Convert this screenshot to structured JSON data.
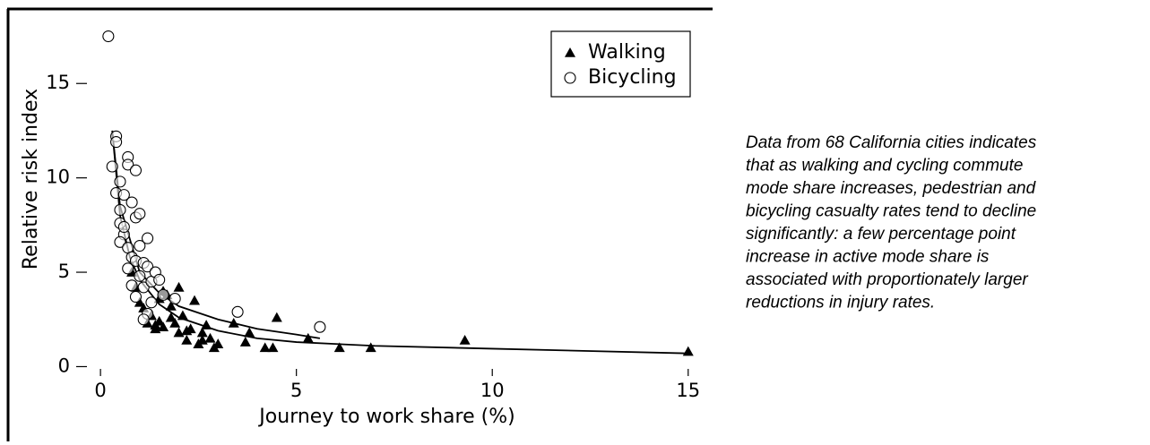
{
  "chart_data": {
    "type": "scatter",
    "xlabel": "Journey to work share (%)",
    "ylabel": "Relative risk index",
    "xlim": [
      -0.3,
      15.6
    ],
    "ylim": [
      -0.5,
      18
    ],
    "xticks": [
      0,
      5,
      10,
      15
    ],
    "yticks": [
      0,
      5,
      10,
      15
    ],
    "legend": "upper right",
    "series": [
      {
        "name": "Walking",
        "marker": "triangle",
        "color": "#000000",
        "x": [
          15,
          9.3,
          6.9,
          6.1,
          5.3,
          4.5,
          4.4,
          4.2,
          3.8,
          3.7,
          3.4,
          3.0,
          2.9,
          2.8,
          2.7,
          2.6,
          2.5,
          2.4,
          2.3,
          2.2,
          2.1,
          2.0,
          2.0,
          1.9,
          1.8,
          1.7,
          1.6,
          1.5,
          1.5,
          1.4,
          1.3,
          1.2,
          1.1,
          1.0,
          0.9,
          0.8,
          1.6,
          1.8,
          2.2,
          2.6,
          1.4
        ],
        "values": [
          0.8,
          1.4,
          1.0,
          1.0,
          1.5,
          2.6,
          1.0,
          1.0,
          1.8,
          1.3,
          2.3,
          1.2,
          1.0,
          1.5,
          2.2,
          1.8,
          1.2,
          3.5,
          2.0,
          1.4,
          2.7,
          1.8,
          4.2,
          2.3,
          3.2,
          3.8,
          2.1,
          2.4,
          3.6,
          2.0,
          2.7,
          2.3,
          3.1,
          3.4,
          4.2,
          5.0,
          4.0,
          2.6,
          1.9,
          1.4,
          2.2
        ]
      },
      {
        "name": "Bicycling",
        "marker": "circle",
        "color": "#000000",
        "x": [
          0.2,
          0.4,
          0.4,
          0.3,
          0.5,
          0.4,
          0.5,
          0.6,
          0.5,
          0.7,
          0.7,
          0.9,
          0.8,
          0.9,
          1.0,
          0.7,
          0.8,
          0.7,
          1.0,
          0.9,
          1.1,
          1.2,
          1.0,
          1.2,
          0.8,
          1.1,
          0.9,
          1.3,
          1.2,
          1.1,
          1.3,
          1.4,
          1.5,
          1.6,
          1.9,
          3.5,
          5.6,
          0.6,
          0.5,
          0.6
        ],
        "values": [
          17.5,
          12.2,
          11.9,
          10.6,
          9.8,
          9.2,
          7.6,
          7.0,
          6.6,
          11.1,
          10.7,
          10.4,
          8.7,
          7.9,
          8.1,
          6.3,
          5.8,
          5.2,
          6.4,
          5.6,
          5.5,
          6.8,
          4.8,
          5.3,
          4.3,
          4.2,
          3.7,
          3.4,
          2.8,
          2.5,
          4.5,
          5.0,
          4.6,
          3.8,
          3.6,
          2.9,
          2.1,
          7.4,
          8.3,
          9.1
        ]
      }
    ],
    "fit_lines": [
      {
        "x": [
          0.3,
          0.5,
          0.75,
          1,
          1.5,
          2,
          3,
          4,
          5,
          7,
          10,
          15
        ],
        "values": [
          12.5,
          8,
          5.8,
          4.6,
          3.3,
          2.6,
          1.9,
          1.5,
          1.3,
          1.1,
          0.95,
          0.7
        ]
      },
      {
        "x": [
          0.3,
          0.5,
          1,
          1.5,
          2,
          3,
          4,
          5,
          5.6
        ],
        "values": [
          12.5,
          8.5,
          5,
          3.9,
          3.2,
          2.5,
          2.0,
          1.7,
          1.5
        ]
      }
    ]
  },
  "note_lines": [
    "Data from 68 California cities indicates",
    "that as walking and cycling commute",
    "mode share increases, pedestrian and",
    "bicycling casualty rates tend to decline",
    "significantly: a few percentage point",
    "increase in active mode share is",
    "associated with proportionately larger",
    "reductions in injury rates."
  ]
}
